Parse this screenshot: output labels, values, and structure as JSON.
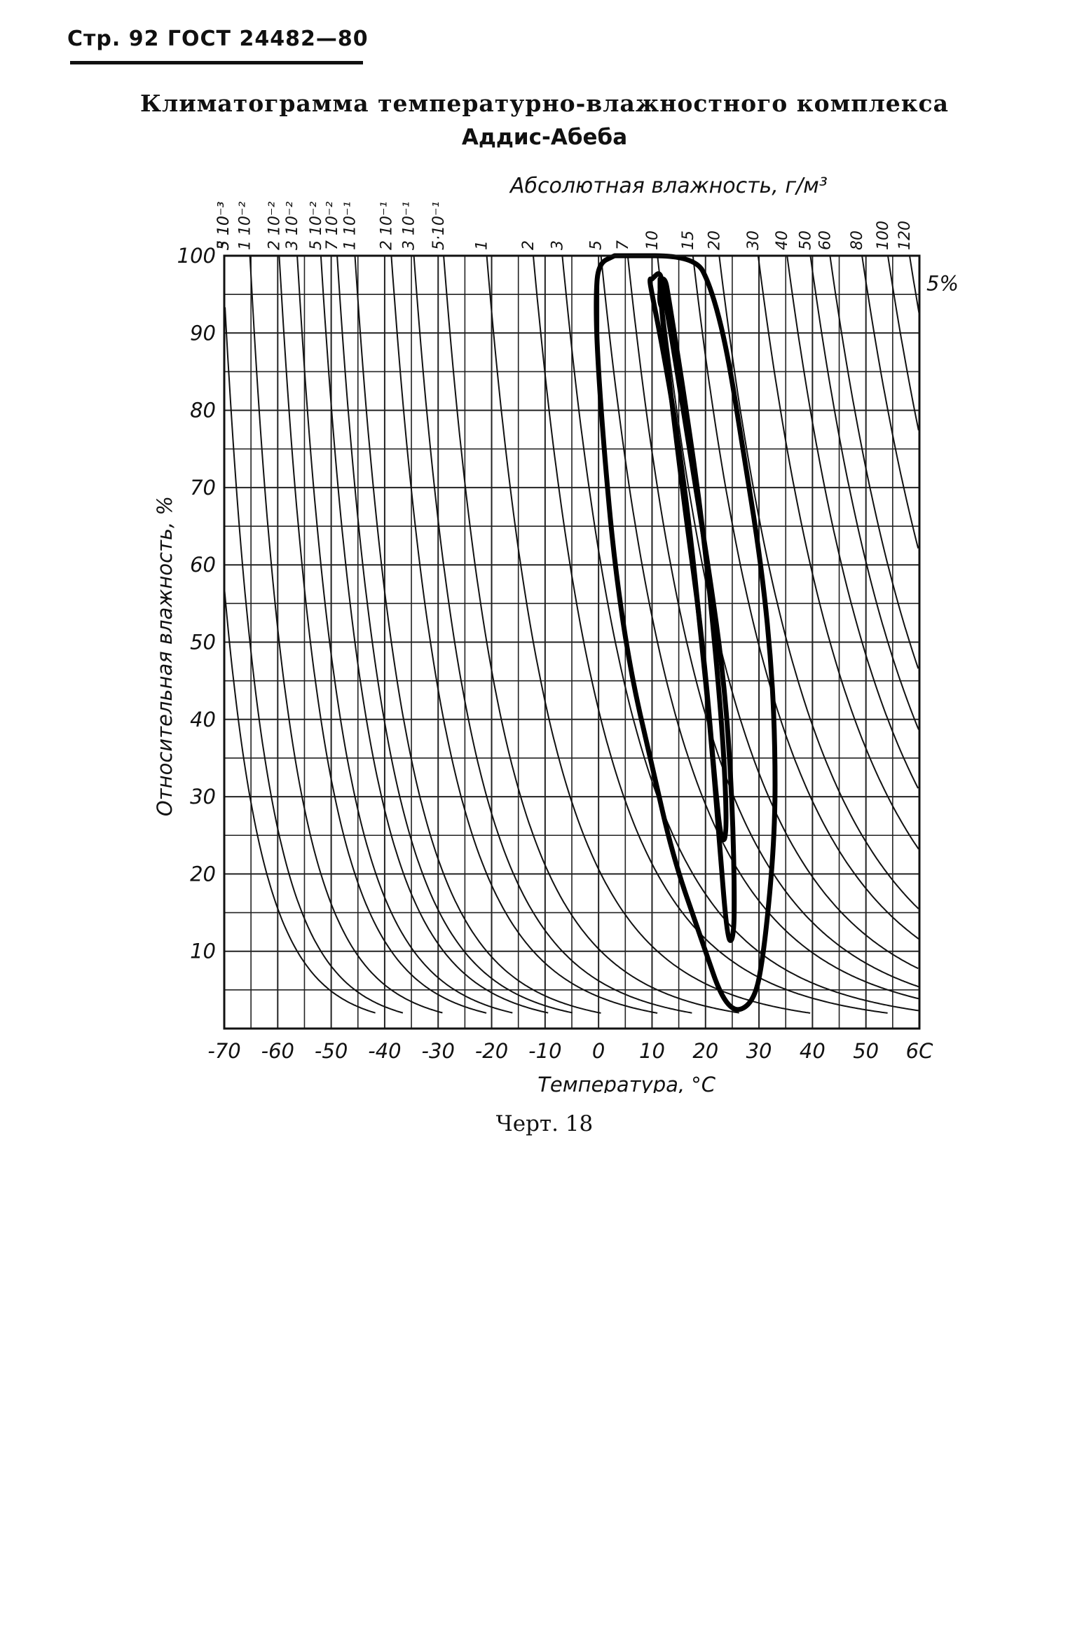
{
  "page_header": "Стр. 92 ГОСТ 24482—80",
  "title_line1": "Климатограмма температурно-влажностного комплекса",
  "title_line2": "Аддис-Абеба",
  "caption": "Черт. 18",
  "chart_data": {
    "type": "line",
    "title": "Климатограмма температурно-влажностного комплекса Аддис-Абеба",
    "xlabel": "Температура, °С",
    "ylabel": "Относительная влажность, %",
    "top_label": "Абсолютная влажность, г/м³",
    "xlim": [
      -70,
      60
    ],
    "ylim": [
      0,
      100
    ],
    "x_ticks": [
      -70,
      -60,
      -50,
      -40,
      -30,
      -20,
      -10,
      0,
      10,
      20,
      30,
      40,
      50,
      60
    ],
    "x_tick_labels": [
      "-70",
      "-60",
      "-50",
      "-40",
      "-30",
      "-20",
      "-10",
      "0",
      "10",
      "20",
      "30",
      "40",
      "50",
      "6С"
    ],
    "y_ticks": [
      10,
      20,
      30,
      40,
      50,
      60,
      70,
      80,
      90,
      100
    ],
    "y_tick_labels": [
      "10",
      "20",
      "30",
      "40",
      "50",
      "60",
      "70",
      "80",
      "90",
      "100"
    ],
    "grid": true,
    "abs_humidity_isolines": {
      "values_g_m3": [
        0.003,
        0.005,
        0.01,
        0.02,
        0.03,
        0.05,
        0.07,
        0.1,
        0.2,
        0.3,
        0.5,
        1,
        2,
        3,
        5,
        7,
        10,
        15,
        20,
        30,
        40,
        50,
        60,
        80,
        100,
        120
      ],
      "labels": [
        "3 10⁻³",
        "5 10⁻³",
        "1 10⁻²",
        "2 10⁻²",
        "3 10⁻²",
        "5 10⁻²",
        "7 10⁻²",
        "1 10⁻¹",
        "2 10⁻¹",
        "3 10⁻¹",
        "5·10⁻¹",
        "1",
        "2",
        "3",
        "5",
        "7",
        "10",
        "15",
        "20",
        "30",
        "40",
        "50",
        "60",
        "80",
        "100",
        "120"
      ]
    },
    "annotations": [
      {
        "text": "5%"
      }
    ],
    "series": [
      {
        "level": "outer",
        "x": [
          3,
          18,
          21,
          24,
          27,
          30,
          32,
          33,
          33,
          31,
          29,
          24,
          19,
          14,
          10,
          6,
          3,
          1,
          -0.3,
          -0.5,
          0,
          3
        ],
        "y": [
          100,
          100,
          96,
          88,
          75,
          62,
          50,
          38,
          25,
          10,
          3,
          2,
          12,
          22,
          34,
          46,
          60,
          75,
          88,
          95,
          99,
          100
        ]
      },
      {
        "level": "middle",
        "x": [
          10,
          11.5,
          12,
          14,
          17,
          20.5,
          23.5,
          25,
          25.5,
          25,
          24,
          22.5,
          21,
          19,
          17,
          14.5,
          12,
          10,
          9.5,
          10
        ],
        "y": [
          97,
          98,
          96,
          88,
          75,
          60,
          45,
          30,
          15,
          11,
          12,
          25,
          38,
          52,
          65,
          78,
          88,
          95,
          97,
          97
        ]
      },
      {
        "level": "inner",
        "x": [
          11.5,
          12.5,
          13,
          16,
          19.5,
          22,
          23.5,
          24,
          23,
          22,
          19.5,
          16,
          13,
          11.5,
          11.5
        ],
        "y": [
          97,
          97,
          95,
          82,
          65,
          48,
          35,
          25,
          24,
          30,
          50,
          68,
          85,
          95,
          97
        ]
      },
      {
        "level": "core",
        "x": [
          11.5,
          12.2,
          12.6,
          12,
          11.4,
          11.5
        ],
        "y": [
          95.5,
          96,
          94,
          93,
          94,
          95.5
        ]
      }
    ]
  }
}
